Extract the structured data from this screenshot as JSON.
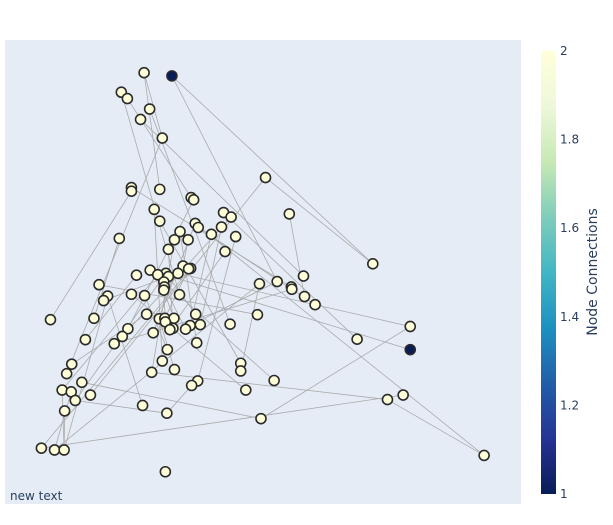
{
  "chart_data": {
    "type": "scatter",
    "title": "",
    "xlabel": "",
    "ylabel": "",
    "grid": false,
    "plot_background": "#e5ecf6",
    "edge_color": "#aaaaaa",
    "node_outline_color": "#2a2a2a",
    "colorscale": "YlGnBu",
    "colorbar": {
      "title": "Node Connections",
      "range": [
        1,
        2
      ],
      "ticks": [
        "1",
        "1.2",
        "1.4",
        "1.6",
        "1.8",
        "2"
      ]
    },
    "annotation": "new text",
    "xlim": [
      0,
      1
    ],
    "ylim": [
      0,
      1
    ],
    "nodes": [
      {
        "x": 0.265,
        "y": 0.939,
        "c": 2
      },
      {
        "x": 0.32,
        "y": 0.932,
        "c": 1
      },
      {
        "x": 0.22,
        "y": 0.896,
        "c": 2
      },
      {
        "x": 0.232,
        "y": 0.882,
        "c": 2
      },
      {
        "x": 0.276,
        "y": 0.859,
        "c": 2
      },
      {
        "x": 0.258,
        "y": 0.836,
        "c": 2
      },
      {
        "x": 0.301,
        "y": 0.795,
        "c": 2
      },
      {
        "x": 0.505,
        "y": 0.708,
        "c": 2
      },
      {
        "x": 0.24,
        "y": 0.686,
        "c": 2
      },
      {
        "x": 0.296,
        "y": 0.682,
        "c": 2
      },
      {
        "x": 0.24,
        "y": 0.678,
        "c": 2
      },
      {
        "x": 0.358,
        "y": 0.664,
        "c": 2
      },
      {
        "x": 0.363,
        "y": 0.659,
        "c": 2
      },
      {
        "x": 0.285,
        "y": 0.638,
        "c": 2
      },
      {
        "x": 0.422,
        "y": 0.631,
        "c": 2
      },
      {
        "x": 0.552,
        "y": 0.628,
        "c": 2
      },
      {
        "x": 0.437,
        "y": 0.621,
        "c": 2
      },
      {
        "x": 0.296,
        "y": 0.612,
        "c": 2
      },
      {
        "x": 0.366,
        "y": 0.607,
        "c": 2
      },
      {
        "x": 0.418,
        "y": 0.599,
        "c": 2
      },
      {
        "x": 0.372,
        "y": 0.598,
        "c": 2
      },
      {
        "x": 0.336,
        "y": 0.589,
        "c": 2
      },
      {
        "x": 0.398,
        "y": 0.583,
        "c": 2
      },
      {
        "x": 0.446,
        "y": 0.578,
        "c": 2
      },
      {
        "x": 0.216,
        "y": 0.574,
        "c": 2
      },
      {
        "x": 0.325,
        "y": 0.571,
        "c": 2
      },
      {
        "x": 0.352,
        "y": 0.571,
        "c": 2
      },
      {
        "x": 0.313,
        "y": 0.55,
        "c": 2
      },
      {
        "x": 0.425,
        "y": 0.545,
        "c": 2
      },
      {
        "x": 0.717,
        "y": 0.518,
        "c": 2
      },
      {
        "x": 0.342,
        "y": 0.513,
        "c": 2
      },
      {
        "x": 0.357,
        "y": 0.508,
        "c": 2
      },
      {
        "x": 0.353,
        "y": 0.507,
        "c": 2
      },
      {
        "x": 0.277,
        "y": 0.504,
        "c": 2
      },
      {
        "x": 0.308,
        "y": 0.497,
        "c": 2
      },
      {
        "x": 0.332,
        "y": 0.497,
        "c": 2
      },
      {
        "x": 0.292,
        "y": 0.494,
        "c": 2
      },
      {
        "x": 0.313,
        "y": 0.49,
        "c": 2
      },
      {
        "x": 0.25,
        "y": 0.493,
        "c": 2
      },
      {
        "x": 0.58,
        "y": 0.491,
        "c": 2
      },
      {
        "x": 0.304,
        "y": 0.478,
        "c": 2
      },
      {
        "x": 0.528,
        "y": 0.479,
        "c": 2
      },
      {
        "x": 0.305,
        "y": 0.467,
        "c": 2
      },
      {
        "x": 0.493,
        "y": 0.474,
        "c": 2
      },
      {
        "x": 0.176,
        "y": 0.472,
        "c": 2
      },
      {
        "x": 0.304,
        "y": 0.46,
        "c": 2
      },
      {
        "x": 0.556,
        "y": 0.467,
        "c": 2
      },
      {
        "x": 0.557,
        "y": 0.462,
        "c": 2
      },
      {
        "x": 0.24,
        "y": 0.451,
        "c": 2
      },
      {
        "x": 0.266,
        "y": 0.448,
        "c": 2
      },
      {
        "x": 0.335,
        "y": 0.45,
        "c": 2
      },
      {
        "x": 0.193,
        "y": 0.447,
        "c": 2
      },
      {
        "x": 0.582,
        "y": 0.446,
        "c": 2
      },
      {
        "x": 0.185,
        "y": 0.437,
        "c": 2
      },
      {
        "x": 0.603,
        "y": 0.428,
        "c": 2
      },
      {
        "x": 0.367,
        "y": 0.407,
        "c": 2
      },
      {
        "x": 0.489,
        "y": 0.406,
        "c": 2
      },
      {
        "x": 0.08,
        "y": 0.395,
        "c": 2
      },
      {
        "x": 0.166,
        "y": 0.398,
        "c": 2
      },
      {
        "x": 0.27,
        "y": 0.407,
        "c": 2
      },
      {
        "x": 0.295,
        "y": 0.397,
        "c": 2
      },
      {
        "x": 0.306,
        "y": 0.398,
        "c": 2
      },
      {
        "x": 0.324,
        "y": 0.398,
        "c": 2
      },
      {
        "x": 0.307,
        "y": 0.39,
        "c": 2
      },
      {
        "x": 0.356,
        "y": 0.382,
        "c": 2
      },
      {
        "x": 0.376,
        "y": 0.384,
        "c": 2
      },
      {
        "x": 0.435,
        "y": 0.385,
        "c": 2
      },
      {
        "x": 0.791,
        "y": 0.38,
        "c": 2
      },
      {
        "x": 0.233,
        "y": 0.375,
        "c": 2
      },
      {
        "x": 0.322,
        "y": 0.376,
        "c": 2
      },
      {
        "x": 0.347,
        "y": 0.374,
        "c": 2
      },
      {
        "x": 0.316,
        "y": 0.373,
        "c": 2
      },
      {
        "x": 0.283,
        "y": 0.366,
        "c": 2
      },
      {
        "x": 0.222,
        "y": 0.358,
        "c": 2
      },
      {
        "x": 0.149,
        "y": 0.351,
        "c": 2
      },
      {
        "x": 0.686,
        "y": 0.352,
        "c": 2
      },
      {
        "x": 0.206,
        "y": 0.342,
        "c": 2
      },
      {
        "x": 0.369,
        "y": 0.344,
        "c": 2
      },
      {
        "x": 0.311,
        "y": 0.329,
        "c": 2
      },
      {
        "x": 0.791,
        "y": 0.329,
        "c": 1
      },
      {
        "x": 0.456,
        "y": 0.299,
        "c": 2
      },
      {
        "x": 0.122,
        "y": 0.297,
        "c": 2
      },
      {
        "x": 0.301,
        "y": 0.304,
        "c": 2
      },
      {
        "x": 0.325,
        "y": 0.285,
        "c": 2
      },
      {
        "x": 0.456,
        "y": 0.282,
        "c": 2
      },
      {
        "x": 0.28,
        "y": 0.279,
        "c": 2
      },
      {
        "x": 0.112,
        "y": 0.276,
        "c": 2
      },
      {
        "x": 0.371,
        "y": 0.26,
        "c": 2
      },
      {
        "x": 0.522,
        "y": 0.261,
        "c": 2
      },
      {
        "x": 0.142,
        "y": 0.257,
        "c": 2
      },
      {
        "x": 0.359,
        "y": 0.25,
        "c": 2
      },
      {
        "x": 0.103,
        "y": 0.24,
        "c": 2
      },
      {
        "x": 0.466,
        "y": 0.24,
        "c": 2
      },
      {
        "x": 0.121,
        "y": 0.236,
        "c": 2
      },
      {
        "x": 0.159,
        "y": 0.229,
        "c": 2
      },
      {
        "x": 0.777,
        "y": 0.229,
        "c": 2
      },
      {
        "x": 0.129,
        "y": 0.217,
        "c": 2
      },
      {
        "x": 0.746,
        "y": 0.219,
        "c": 2
      },
      {
        "x": 0.262,
        "y": 0.206,
        "c": 2
      },
      {
        "x": 0.108,
        "y": 0.194,
        "c": 2
      },
      {
        "x": 0.31,
        "y": 0.189,
        "c": 2
      },
      {
        "x": 0.496,
        "y": 0.177,
        "c": 2
      },
      {
        "x": 0.062,
        "y": 0.112,
        "c": 2
      },
      {
        "x": 0.088,
        "y": 0.108,
        "c": 2
      },
      {
        "x": 0.107,
        "y": 0.108,
        "c": 2
      },
      {
        "x": 0.937,
        "y": 0.096,
        "c": 2
      },
      {
        "x": 0.307,
        "y": 0.06,
        "c": 2
      }
    ],
    "edges": [
      [
        1,
        29
      ],
      [
        1,
        41
      ],
      [
        0,
        6
      ],
      [
        0,
        9
      ],
      [
        2,
        50
      ],
      [
        3,
        11
      ],
      [
        4,
        66
      ],
      [
        5,
        39
      ],
      [
        6,
        86
      ],
      [
        7,
        29
      ],
      [
        7,
        94
      ],
      [
        8,
        46
      ],
      [
        10,
        57
      ],
      [
        12,
        68
      ],
      [
        13,
        82
      ],
      [
        14,
        75
      ],
      [
        15,
        52
      ],
      [
        16,
        73
      ],
      [
        17,
        80
      ],
      [
        18,
        72
      ],
      [
        19,
        65
      ],
      [
        20,
        54
      ],
      [
        21,
        77
      ],
      [
        22,
        64
      ],
      [
        23,
        87
      ],
      [
        24,
        58
      ],
      [
        25,
        85
      ],
      [
        26,
        30
      ],
      [
        27,
        69
      ],
      [
        28,
        71
      ],
      [
        31,
        53
      ],
      [
        32,
        61
      ],
      [
        33,
        79
      ],
      [
        34,
        96
      ],
      [
        35,
        67
      ],
      [
        36,
        62
      ],
      [
        37,
        55
      ],
      [
        38,
        74
      ],
      [
        40,
        88
      ],
      [
        42,
        70
      ],
      [
        43,
        84
      ],
      [
        44,
        56
      ],
      [
        45,
        63
      ],
      [
        47,
        76
      ],
      [
        48,
        92
      ],
      [
        49,
        78
      ],
      [
        51,
        98
      ],
      [
        59,
        81
      ],
      [
        60,
        83
      ],
      [
        89,
        101
      ],
      [
        90,
        100
      ],
      [
        91,
        104
      ],
      [
        93,
        103
      ],
      [
        95,
        102
      ],
      [
        97,
        105
      ],
      [
        99,
        104
      ],
      [
        100,
        96
      ],
      [
        101,
        67
      ],
      [
        102,
        31
      ],
      [
        103,
        43
      ],
      [
        105,
        18
      ],
      [
        104,
        51
      ],
      [
        97,
        85
      ],
      [
        91,
        36
      ],
      [
        64,
        41
      ]
    ]
  }
}
